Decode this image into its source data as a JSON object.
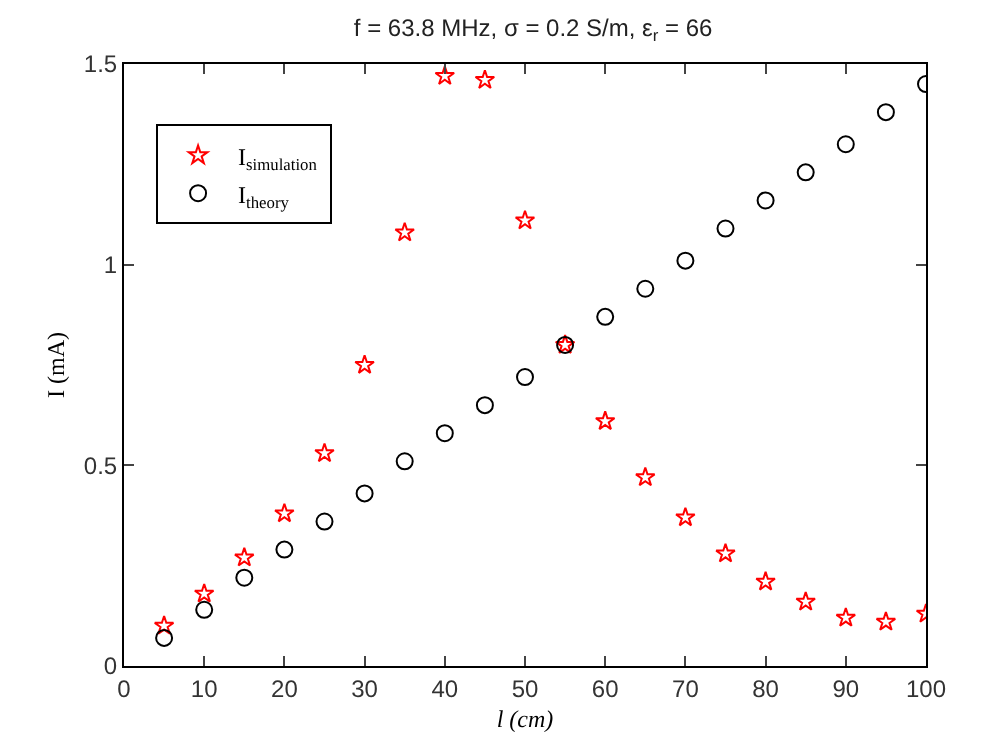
{
  "chart_data": {
    "type": "scatter",
    "title": "f = 63.8 MHz, σ = 0.2 S/m, ε$_{r}$ = 66",
    "xlabel": "l (cm)",
    "ylabel": "I (mA)",
    "x": [
      5,
      10,
      15,
      20,
      25,
      30,
      35,
      40,
      45,
      50,
      55,
      60,
      65,
      70,
      75,
      80,
      85,
      90,
      95,
      100
    ],
    "series": [
      {
        "name": "I$_{simulation}$",
        "color": "#ff0000",
        "marker": "star",
        "values": [
          0.1,
          0.18,
          0.27,
          0.38,
          0.53,
          0.75,
          1.08,
          1.47,
          1.46,
          1.11,
          0.8,
          0.61,
          0.47,
          0.37,
          0.28,
          0.21,
          0.16,
          0.12,
          0.11,
          0.13
        ]
      },
      {
        "name": "I$_{theory}$",
        "color": "#000000",
        "marker": "circle",
        "values": [
          0.07,
          0.14,
          0.22,
          0.29,
          0.36,
          0.43,
          0.51,
          0.58,
          0.65,
          0.72,
          0.8,
          0.87,
          0.94,
          1.01,
          1.09,
          1.16,
          1.23,
          1.3,
          1.38,
          1.45
        ]
      }
    ],
    "xlim": [
      0,
      100
    ],
    "xticks": [
      0,
      10,
      20,
      30,
      40,
      50,
      60,
      70,
      80,
      90,
      100
    ],
    "ylim": [
      0,
      1.5
    ],
    "yticks": [
      0,
      0.5,
      1,
      1.5
    ],
    "grid": false,
    "legend": "top left"
  }
}
